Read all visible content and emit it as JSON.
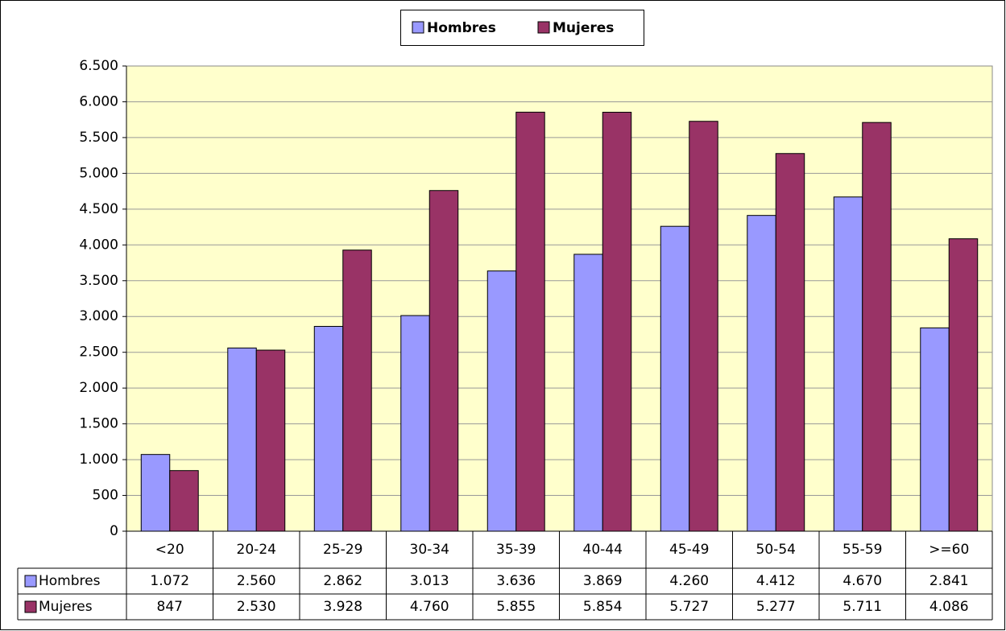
{
  "chart_data": {
    "type": "bar",
    "categories": [
      "<20",
      "20-24",
      "25-29",
      "30-34",
      "35-39",
      "40-44",
      "45-49",
      "50-54",
      "55-59",
      ">=60"
    ],
    "series": [
      {
        "name": "Hombres",
        "color": "#9999ff",
        "values": [
          1072,
          2560,
          2862,
          3013,
          3636,
          3869,
          4260,
          4412,
          4670,
          2841
        ],
        "value_labels": [
          "1.072",
          "2.560",
          "2.862",
          "3.013",
          "3.636",
          "3.869",
          "4.260",
          "4.412",
          "4.670",
          "2.841"
        ]
      },
      {
        "name": "Mujeres",
        "color": "#993366",
        "values": [
          847,
          2530,
          3928,
          4760,
          5855,
          5854,
          5727,
          5277,
          5711,
          4086
        ],
        "value_labels": [
          "847",
          "2.530",
          "3.928",
          "4.760",
          "5.855",
          "5.854",
          "5.727",
          "5.277",
          "5.711",
          "4.086"
        ]
      }
    ],
    "ylim": [
      0,
      6500
    ],
    "yticks": [
      0,
      500,
      {
        "value": 1000,
        "label": "1.000"
      },
      {
        "value": 1500,
        "label": "1.500"
      },
      {
        "value": 2000,
        "label": "2.000"
      },
      {
        "value": 2500,
        "label": "2.500"
      },
      {
        "value": 3000,
        "label": "3.000"
      },
      {
        "value": 3500,
        "label": "3.500"
      },
      {
        "value": 4000,
        "label": "4.000"
      },
      {
        "value": 4500,
        "label": "4.500"
      },
      {
        "value": 5000,
        "label": "5.000"
      },
      {
        "value": 5500,
        "label": "5.500"
      },
      {
        "value": 6000,
        "label": "6.000"
      },
      {
        "value": 6500,
        "label": "6.500"
      }
    ],
    "grid": true,
    "legend": "top",
    "background": "#ffffcc"
  }
}
